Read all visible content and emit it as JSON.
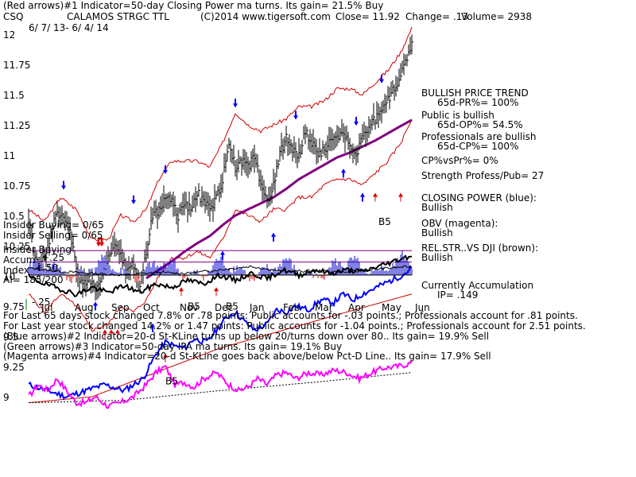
{
  "header": {
    "line1": "(Red arrows)#1 Indicator=50-day Closing Power ma turns.  Its gain= 21.5% Buy",
    "ticker": "CSQ",
    "name": "CALAMOS STRGC TTL",
    "copyright": "(C)2014 www.tigersoft.com",
    "close": "Close=  11.92",
    "change": "Change= .13",
    "volume": "Volume= 2938",
    "daterange": "6/ 7/ 13- 6/ 4/ 14"
  },
  "colors": {
    "price": "#000000",
    "band": "#cc0000",
    "ma": "#800080",
    "closing_power": "#0000ff",
    "obv": "#ff00ff",
    "relstr": "#000000",
    "ref": "#cc0000",
    "volume": "#0000cc",
    "accum_neg": "#cc0000",
    "ip_ref": "#800080"
  },
  "left_labels": {
    "insider_buying": "Insider Buying= 0/65",
    "insider_selling": "Insider Selling= 0/65",
    "insider_buying2": "Insider Buying",
    "accum": "Accum",
    "index": "Index",
    "ai": "AI= 185/200",
    "p25": "+.25",
    "p50": "+.50",
    "m25": "-.25"
  },
  "side_notes": [
    "BULLISH PRICE TREND",
    "65d-PR%= 100%",
    "Public is bullish",
    "65d-OP%= 54.5%",
    "Professionals are bullish",
    "65d-CP%= 100%",
    "CP%vsPr%=  0%",
    "Strength Profess/Pub= 27",
    "CLOSING POWER (blue):",
    "Bullish",
    "OBV (magenta):",
    "Bullish",
    "REL.STR..VS DJI (brown):",
    "Bullish",
    "Currently Accumulation",
    "IP=  .149"
  ],
  "footer": [
    "For Last 65 days stock changed  7.8% or  .78 points:  Public accounts for -.03 points.;  Professionals account for  .81 points.",
    "For Last year stock changed  14.2% or  1.47 points:  Public accounts for -1.04 points.;  Professionals account for  2.51 points.",
    "(Blue arrows)#2 Indicator=20-d St-KLine turns up below 20/turns down over 80.. Its gain= 19.9% Sell",
    "(Green arrows)#3 Indicator=50-day IPA ma turns. Its gain= 19.1% Buy",
    "(Magenta arrows)#4 Indicator=20-d St-KLine goes back above/below Pct-D Line.. Its gain= 17.9% Sell"
  ],
  "chart_data": {
    "type": "line",
    "ylim": [
      9,
      12
    ],
    "y_ticks": [
      {
        "label": "12",
        "value": 12
      },
      {
        "label": "11.75",
        "value": 11.75
      },
      {
        "label": "11.5",
        "value": 11.5
      },
      {
        "label": "11.25",
        "value": 11.25
      },
      {
        "label": "11",
        "value": 11
      },
      {
        "label": "10.75",
        "value": 10.75
      },
      {
        "label": "10.5",
        "value": 10.5
      },
      {
        "label": "10.25",
        "value": 10.25
      },
      {
        "label": "10",
        "value": 10
      },
      {
        "label": "9.75",
        "value": 9.75
      },
      {
        "label": "9.5",
        "value": 9.5
      },
      {
        "label": "9.25",
        "value": 9.25
      },
      {
        "label": "9",
        "value": 9
      }
    ],
    "x_ticks": [
      "Jul",
      "Aug",
      "Sep",
      "Oct",
      "Nov",
      "Dec",
      "Jan",
      "Feb",
      "Mar",
      "Apr",
      "May",
      "Jun"
    ],
    "x_tick_index": [
      13,
      34,
      57,
      77,
      100,
      122,
      144,
      165,
      185,
      206,
      227,
      248
    ],
    "price_keys": [
      [
        0,
        10.45
      ],
      [
        5,
        10.1
      ],
      [
        10,
        10.15
      ],
      [
        13,
        10.3
      ],
      [
        18,
        10.55
      ],
      [
        22,
        10.45
      ],
      [
        26,
        10.35
      ],
      [
        30,
        10.05
      ],
      [
        34,
        9.9
      ],
      [
        38,
        10.0
      ],
      [
        42,
        9.85
      ],
      [
        46,
        10.0
      ],
      [
        50,
        10.15
      ],
      [
        54,
        10.25
      ],
      [
        58,
        10.15
      ],
      [
        62,
        10.05
      ],
      [
        66,
        10.1
      ],
      [
        70,
        9.95
      ],
      [
        74,
        10.2
      ],
      [
        78,
        10.5
      ],
      [
        82,
        10.55
      ],
      [
        86,
        10.65
      ],
      [
        90,
        10.6
      ],
      [
        94,
        10.5
      ],
      [
        98,
        10.6
      ],
      [
        102,
        10.55
      ],
      [
        106,
        10.7
      ],
      [
        110,
        10.6
      ],
      [
        114,
        10.55
      ],
      [
        118,
        10.65
      ],
      [
        122,
        10.8
      ],
      [
        126,
        11.1
      ],
      [
        130,
        10.9
      ],
      [
        134,
        10.95
      ],
      [
        138,
        10.9
      ],
      [
        142,
        11.0
      ],
      [
        146,
        10.75
      ],
      [
        150,
        10.6
      ],
      [
        154,
        10.75
      ],
      [
        158,
        11.0
      ],
      [
        162,
        11.15
      ],
      [
        166,
        11.05
      ],
      [
        170,
        11.0
      ],
      [
        174,
        11.2
      ],
      [
        178,
        11.1
      ],
      [
        182,
        11.0
      ],
      [
        186,
        11.05
      ],
      [
        190,
        11.1
      ],
      [
        194,
        11.15
      ],
      [
        198,
        11.2
      ],
      [
        202,
        11.1
      ],
      [
        206,
        11.0
      ],
      [
        210,
        11.15
      ],
      [
        214,
        11.25
      ],
      [
        218,
        11.3
      ],
      [
        222,
        11.35
      ],
      [
        226,
        11.45
      ],
      [
        230,
        11.55
      ],
      [
        234,
        11.65
      ],
      [
        238,
        11.8
      ],
      [
        241,
        11.92
      ]
    ],
    "upper_band_keys": [
      [
        0,
        10.55
      ],
      [
        10,
        10.45
      ],
      [
        20,
        10.65
      ],
      [
        30,
        10.55
      ],
      [
        40,
        10.3
      ],
      [
        50,
        10.3
      ],
      [
        58,
        10.5
      ],
      [
        66,
        10.45
      ],
      [
        74,
        10.55
      ],
      [
        82,
        10.8
      ],
      [
        90,
        10.95
      ],
      [
        98,
        10.95
      ],
      [
        106,
        10.95
      ],
      [
        114,
        10.9
      ],
      [
        122,
        11.1
      ],
      [
        130,
        11.35
      ],
      [
        138,
        11.25
      ],
      [
        146,
        11.2
      ],
      [
        154,
        11.25
      ],
      [
        162,
        11.3
      ],
      [
        170,
        11.4
      ],
      [
        178,
        11.4
      ],
      [
        186,
        11.45
      ],
      [
        194,
        11.55
      ],
      [
        202,
        11.55
      ],
      [
        210,
        11.5
      ],
      [
        218,
        11.6
      ],
      [
        226,
        11.7
      ],
      [
        234,
        11.85
      ],
      [
        241,
        12.05
      ]
    ],
    "lower_band_keys": [
      [
        0,
        9.85
      ],
      [
        10,
        9.7
      ],
      [
        20,
        9.85
      ],
      [
        30,
        9.75
      ],
      [
        40,
        9.55
      ],
      [
        50,
        9.6
      ],
      [
        58,
        9.75
      ],
      [
        66,
        9.7
      ],
      [
        74,
        9.8
      ],
      [
        82,
        10.0
      ],
      [
        90,
        10.15
      ],
      [
        98,
        10.15
      ],
      [
        106,
        10.2
      ],
      [
        114,
        10.15
      ],
      [
        122,
        10.3
      ],
      [
        130,
        10.55
      ],
      [
        138,
        10.5
      ],
      [
        146,
        10.45
      ],
      [
        154,
        10.55
      ],
      [
        162,
        10.55
      ],
      [
        170,
        10.65
      ],
      [
        178,
        10.65
      ],
      [
        186,
        10.75
      ],
      [
        194,
        10.8
      ],
      [
        202,
        10.8
      ],
      [
        210,
        10.75
      ],
      [
        218,
        10.85
      ],
      [
        226,
        10.95
      ],
      [
        234,
        11.1
      ],
      [
        241,
        11.3
      ]
    ],
    "ma_keys": [
      [
        74,
        9.98
      ],
      [
        82,
        10.05
      ],
      [
        90,
        10.12
      ],
      [
        98,
        10.2
      ],
      [
        106,
        10.27
      ],
      [
        114,
        10.33
      ],
      [
        122,
        10.42
      ],
      [
        130,
        10.5
      ],
      [
        138,
        10.55
      ],
      [
        146,
        10.6
      ],
      [
        154,
        10.65
      ],
      [
        162,
        10.72
      ],
      [
        170,
        10.8
      ],
      [
        178,
        10.86
      ],
      [
        186,
        10.92
      ],
      [
        194,
        10.98
      ],
      [
        202,
        11.02
      ],
      [
        210,
        11.07
      ],
      [
        218,
        11.12
      ],
      [
        226,
        11.18
      ],
      [
        234,
        11.24
      ],
      [
        241,
        11.29
      ]
    ],
    "closing_power_keys": [
      [
        0,
        9.1
      ],
      [
        12,
        9.05
      ],
      [
        24,
        9.0
      ],
      [
        36,
        9.05
      ],
      [
        48,
        9.1
      ],
      [
        60,
        9.05
      ],
      [
        72,
        9.15
      ],
      [
        80,
        9.35
      ],
      [
        86,
        9.45
      ],
      [
        92,
        9.42
      ],
      [
        98,
        9.4
      ],
      [
        104,
        9.48
      ],
      [
        112,
        9.45
      ],
      [
        118,
        9.55
      ],
      [
        124,
        9.65
      ],
      [
        130,
        9.7
      ],
      [
        136,
        9.62
      ],
      [
        142,
        9.55
      ],
      [
        150,
        9.6
      ],
      [
        156,
        9.72
      ],
      [
        162,
        9.7
      ],
      [
        168,
        9.75
      ],
      [
        176,
        9.72
      ],
      [
        184,
        9.8
      ],
      [
        192,
        9.78
      ],
      [
        198,
        9.85
      ],
      [
        204,
        9.8
      ],
      [
        210,
        9.85
      ],
      [
        218,
        9.9
      ],
      [
        226,
        9.95
      ],
      [
        234,
        10.0
      ],
      [
        241,
        10.06
      ]
    ],
    "cp_ref_keys": [
      [
        0,
        8.95
      ],
      [
        40,
        9.0
      ],
      [
        80,
        9.2
      ],
      [
        120,
        9.4
      ],
      [
        160,
        9.55
      ],
      [
        200,
        9.7
      ],
      [
        241,
        9.85
      ]
    ],
    "obv_keys": [
      [
        0,
        9.0
      ],
      [
        6,
        9.1
      ],
      [
        12,
        9.05
      ],
      [
        18,
        9.15
      ],
      [
        24,
        9.05
      ],
      [
        30,
        8.95
      ],
      [
        36,
        8.95
      ],
      [
        42,
        9.0
      ],
      [
        50,
        8.92
      ],
      [
        58,
        8.95
      ],
      [
        66,
        9.0
      ],
      [
        74,
        9.1
      ],
      [
        80,
        9.2
      ],
      [
        86,
        9.25
      ],
      [
        92,
        9.1
      ],
      [
        98,
        9.12
      ],
      [
        104,
        9.08
      ],
      [
        110,
        9.15
      ],
      [
        118,
        9.2
      ],
      [
        126,
        9.1
      ],
      [
        132,
        9.05
      ],
      [
        138,
        9.08
      ],
      [
        144,
        9.15
      ],
      [
        150,
        9.1
      ],
      [
        156,
        9.18
      ],
      [
        162,
        9.2
      ],
      [
        168,
        9.15
      ],
      [
        176,
        9.2
      ],
      [
        184,
        9.18
      ],
      [
        192,
        9.22
      ],
      [
        200,
        9.2
      ],
      [
        208,
        9.15
      ],
      [
        216,
        9.2
      ],
      [
        224,
        9.24
      ],
      [
        232,
        9.25
      ],
      [
        241,
        9.28
      ]
    ],
    "obv_ref_keys": [
      [
        0,
        8.95
      ],
      [
        60,
        8.97
      ],
      [
        120,
        9.05
      ],
      [
        180,
        9.12
      ],
      [
        241,
        9.2
      ]
    ],
    "relstr_keys": [
      [
        0,
        -0.02
      ],
      [
        10,
        -0.1
      ],
      [
        20,
        -0.16
      ],
      [
        30,
        -0.22
      ],
      [
        40,
        -0.14
      ],
      [
        50,
        -0.2
      ],
      [
        60,
        -0.12
      ],
      [
        70,
        -0.2
      ],
      [
        80,
        -0.1
      ],
      [
        90,
        -0.14
      ],
      [
        100,
        -0.06
      ],
      [
        110,
        -0.1
      ],
      [
        120,
        0.0
      ],
      [
        130,
        -0.06
      ],
      [
        140,
        0.02
      ],
      [
        150,
        -0.04
      ],
      [
        160,
        0.06
      ],
      [
        170,
        0.0
      ],
      [
        180,
        0.06
      ],
      [
        190,
        0.02
      ],
      [
        200,
        0.06
      ],
      [
        210,
        0.04
      ],
      [
        220,
        0.1
      ],
      [
        230,
        0.16
      ],
      [
        236,
        0.2
      ],
      [
        241,
        0.22
      ]
    ],
    "accum_ref_keys": [
      [
        0,
        0.08
      ],
      [
        20,
        0.04
      ],
      [
        40,
        0.02
      ],
      [
        60,
        0.0
      ],
      [
        80,
        0.03
      ],
      [
        100,
        0.02
      ],
      [
        120,
        0.06
      ],
      [
        140,
        0.1
      ],
      [
        160,
        0.04
      ],
      [
        180,
        0.05
      ],
      [
        200,
        0.03
      ],
      [
        220,
        0.07
      ],
      [
        241,
        0.1
      ]
    ],
    "accum_range": [
      -0.3,
      0.3
    ],
    "ip_reference": 0.149,
    "arrows": [
      {
        "color": "blue",
        "dir": "down",
        "i": 22,
        "value": 10.72
      },
      {
        "color": "blue",
        "dir": "down",
        "i": 66,
        "value": 10.6
      },
      {
        "color": "blue",
        "dir": "down",
        "i": 86,
        "value": 10.85
      },
      {
        "color": "blue",
        "dir": "down",
        "i": 130,
        "value": 11.4
      },
      {
        "color": "blue",
        "dir": "down",
        "i": 168,
        "value": 11.3
      },
      {
        "color": "blue",
        "dir": "down",
        "i": 206,
        "value": 11.25
      },
      {
        "color": "blue",
        "dir": "down",
        "i": 222,
        "value": 11.6
      },
      {
        "color": "blue",
        "dir": "up",
        "i": 42,
        "value": 9.78
      },
      {
        "color": "blue",
        "dir": "up",
        "i": 78,
        "value": 9.6
      },
      {
        "color": "blue",
        "dir": "up",
        "i": 122,
        "value": 10.2
      },
      {
        "color": "blue",
        "dir": "up",
        "i": 154,
        "value": 10.35
      },
      {
        "color": "blue",
        "dir": "up",
        "i": 198,
        "value": 10.88
      },
      {
        "color": "blue",
        "dir": "up",
        "i": 210,
        "value": 10.68
      },
      {
        "color": "red",
        "dir": "down",
        "i": 44,
        "value": 10.25
      },
      {
        "color": "red",
        "dir": "down",
        "i": 46,
        "value": 10.25
      },
      {
        "color": "red",
        "dir": "up",
        "i": 48,
        "value": 9.55
      },
      {
        "color": "red",
        "dir": "up",
        "i": 52,
        "value": 9.55
      },
      {
        "color": "red",
        "dir": "up",
        "i": 56,
        "value": 9.55
      },
      {
        "color": "red",
        "dir": "up",
        "i": 96,
        "value": 9.9
      },
      {
        "color": "red",
        "dir": "up",
        "i": 118,
        "value": 9.9
      },
      {
        "color": "red",
        "dir": "up",
        "i": 86,
        "value": 9.35
      },
      {
        "color": "red",
        "dir": "up",
        "i": 218,
        "value": 10.68
      },
      {
        "color": "red",
        "dir": "up",
        "i": 234,
        "value": 10.68
      }
    ],
    "annotations": [
      {
        "text": "B5",
        "i": 100,
        "value": 9.8
      },
      {
        "text": "B5",
        "i": 124,
        "value": 9.8
      },
      {
        "text": "B5",
        "i": 86,
        "value": 9.18
      },
      {
        "text": "B5",
        "i": 220,
        "value": 10.5
      }
    ]
  }
}
